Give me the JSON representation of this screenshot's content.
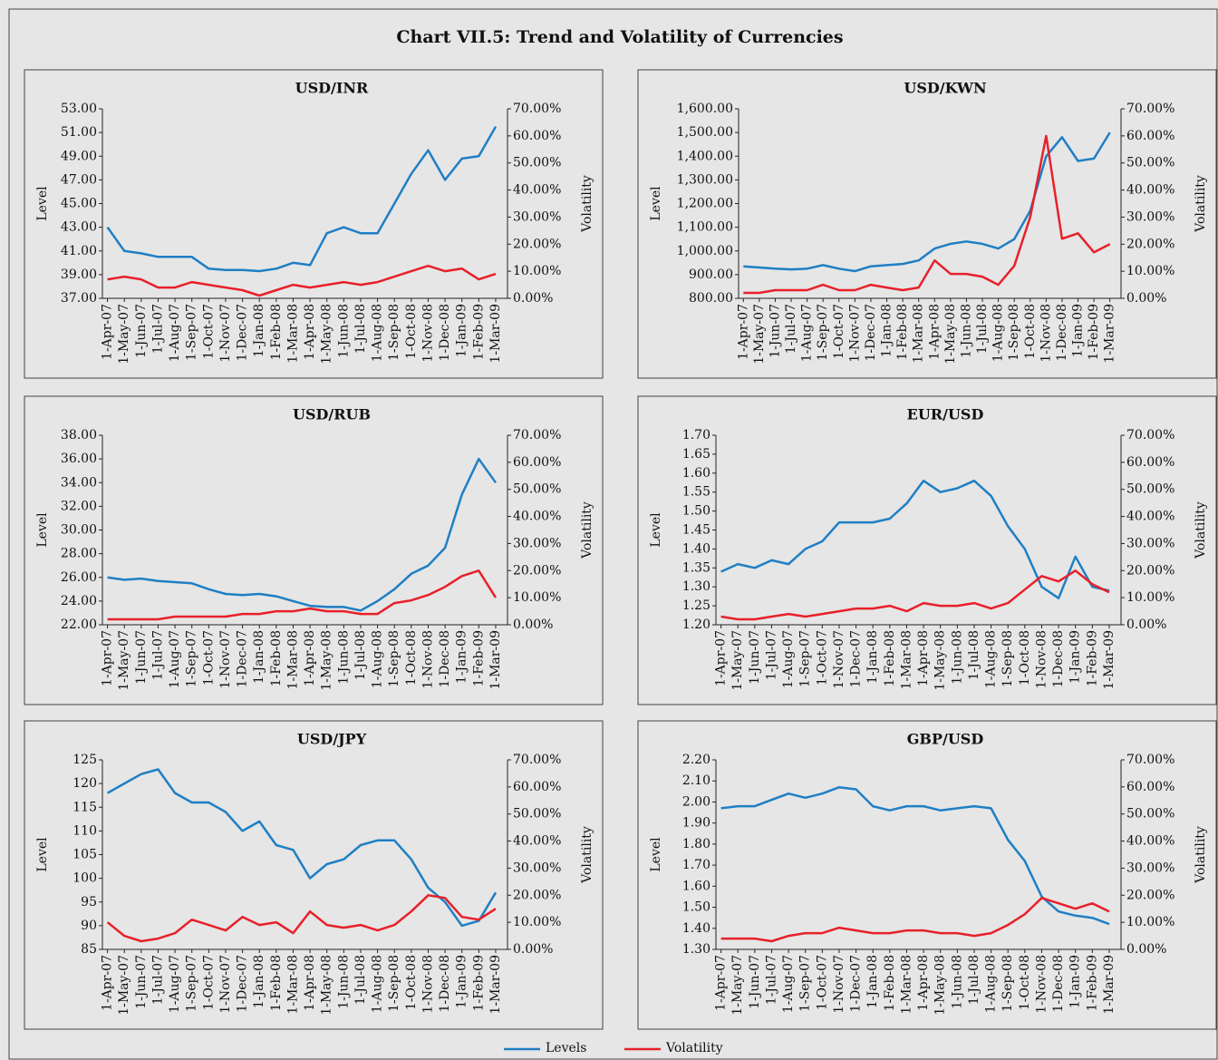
{
  "title": "Chart VII.5: Trend and Volatility of Currencies",
  "legend": [
    {
      "name": "Levels",
      "color": "#1f7fc4"
    },
    {
      "name": "Volatility",
      "color": "#e8202a"
    }
  ],
  "chart_data": [
    {
      "type": "line",
      "title": "USD/INR",
      "ylabel": "Level",
      "y2label": "Volatility",
      "categories": [
        "1-Apr-07",
        "1-May-07",
        "1-Jun-07",
        "1-Jul-07",
        "1-Aug-07",
        "1-Sep-07",
        "1-Oct-07",
        "1-Nov-07",
        "1-Dec-07",
        "1-Jan-08",
        "1-Feb-08",
        "1-Mar-08",
        "1-Apr-08",
        "1-May-08",
        "1-Jun-08",
        "1-Jul-08",
        "1-Aug-08",
        "1-Sep-08",
        "1-Oct-08",
        "1-Nov-08",
        "1-Dec-08",
        "1-Jan-09",
        "1-Feb-09",
        "1-Mar-09"
      ],
      "ylim": [
        37,
        53
      ],
      "yticks": [
        {
          "value": 37,
          "label": "37.00"
        },
        {
          "value": 39,
          "label": "39.00"
        },
        {
          "value": 41,
          "label": "41.00"
        },
        {
          "value": 43,
          "label": "43.00"
        },
        {
          "value": 45,
          "label": "45.00"
        },
        {
          "value": 47,
          "label": "47.00"
        },
        {
          "value": 49,
          "label": "49.00"
        },
        {
          "value": 51,
          "label": "51.00"
        },
        {
          "value": 53,
          "label": "53.00"
        }
      ],
      "y2lim": [
        0,
        70
      ],
      "y2ticks": [
        {
          "value": 0,
          "label": "0.00%"
        },
        {
          "value": 10,
          "label": "10.00%"
        },
        {
          "value": 20,
          "label": "20.00%"
        },
        {
          "value": 30,
          "label": "30.00%"
        },
        {
          "value": 40,
          "label": "40.00%"
        },
        {
          "value": 50,
          "label": "50.00%"
        },
        {
          "value": 60,
          "label": "60.00%"
        },
        {
          "value": 70,
          "label": "70.00%"
        }
      ],
      "series": [
        {
          "color": "#1f7fc4",
          "axis": "y",
          "values": [
            43.0,
            41.0,
            40.8,
            40.5,
            40.5,
            40.5,
            39.5,
            39.4,
            39.4,
            39.3,
            39.5,
            40.0,
            39.8,
            42.5,
            43.0,
            42.5,
            42.5,
            45.0,
            47.5,
            49.5,
            47.0,
            48.8,
            49.0,
            51.5
          ]
        },
        {
          "color": "#e8202a",
          "axis": "y2",
          "values": [
            7,
            8,
            7,
            4,
            4,
            6,
            5,
            4,
            3,
            1,
            3,
            5,
            4,
            5,
            6,
            5,
            6,
            8,
            10,
            12,
            10,
            11,
            7,
            9
          ]
        }
      ]
    },
    {
      "type": "line",
      "title": "USD/KWN",
      "ylabel": "Level",
      "y2label": "Volatility",
      "categories": [
        "1-Apr-07",
        "1-May-07",
        "1-Jun-07",
        "1-Jul-07",
        "1-Aug-07",
        "1-Sep-07",
        "1-Oct-07",
        "1-Nov-07",
        "1-Dec-07",
        "1-Jan-08",
        "1-Feb-08",
        "1-Mar-08",
        "1-Apr-08",
        "1-May-08",
        "1-Jun-08",
        "1-Jul-08",
        "1-Aug-08",
        "1-Sep-08",
        "1-Oct-08",
        "1-Nov-08",
        "1-Dec-08",
        "1-Jan-09",
        "1-Feb-09",
        "1-Mar-09"
      ],
      "ylim": [
        800,
        1600
      ],
      "yticks": [
        {
          "value": 800,
          "label": "800.00"
        },
        {
          "value": 900,
          "label": "900.00"
        },
        {
          "value": 1000,
          "label": "1,000.00"
        },
        {
          "value": 1100,
          "label": "1,100.00"
        },
        {
          "value": 1200,
          "label": "1,200.00"
        },
        {
          "value": 1300,
          "label": "1,300.00"
        },
        {
          "value": 1400,
          "label": "1,400.00"
        },
        {
          "value": 1500,
          "label": "1,500.00"
        },
        {
          "value": 1600,
          "label": "1,600.00"
        }
      ],
      "y2lim": [
        0,
        70
      ],
      "y2ticks": [
        {
          "value": 0,
          "label": "0.00%"
        },
        {
          "value": 10,
          "label": "10.00%"
        },
        {
          "value": 20,
          "label": "20.00%"
        },
        {
          "value": 30,
          "label": "30.00%"
        },
        {
          "value": 40,
          "label": "40.00%"
        },
        {
          "value": 50,
          "label": "50.00%"
        },
        {
          "value": 60,
          "label": "60.00%"
        },
        {
          "value": 70,
          "label": "70.00%"
        }
      ],
      "series": [
        {
          "color": "#1f7fc4",
          "axis": "y",
          "values": [
            935,
            930,
            925,
            922,
            925,
            940,
            925,
            915,
            935,
            940,
            945,
            960,
            1010,
            1030,
            1040,
            1030,
            1010,
            1050,
            1170,
            1400,
            1480,
            1380,
            1390,
            1500
          ]
        },
        {
          "color": "#e8202a",
          "axis": "y2",
          "values": [
            2,
            2,
            3,
            3,
            3,
            5,
            3,
            3,
            5,
            4,
            3,
            4,
            14,
            9,
            9,
            8,
            5,
            12,
            30,
            60,
            22,
            24,
            17,
            20
          ]
        }
      ]
    },
    {
      "type": "line",
      "title": "USD/RUB",
      "ylabel": "Level",
      "y2label": "Volatility",
      "categories": [
        "1-Apr-07",
        "1-May-07",
        "1-Jun-07",
        "1-Jul-07",
        "1-Aug-07",
        "1-Sep-07",
        "1-Oct-07",
        "1-Nov-07",
        "1-Dec-07",
        "1-Jan-08",
        "1-Feb-08",
        "1-Mar-08",
        "1-Apr-08",
        "1-May-08",
        "1-Jun-08",
        "1-Jul-08",
        "1-Aug-08",
        "1-Sep-08",
        "1-Oct-08",
        "1-Nov-08",
        "1-Dec-08",
        "1-Jan-09",
        "1-Feb-09",
        "1-Mar-09"
      ],
      "ylim": [
        22,
        38
      ],
      "yticks": [
        {
          "value": 22,
          "label": "22.00"
        },
        {
          "value": 24,
          "label": "24.00"
        },
        {
          "value": 26,
          "label": "26.00"
        },
        {
          "value": 28,
          "label": "28.00"
        },
        {
          "value": 30,
          "label": "30.00"
        },
        {
          "value": 32,
          "label": "32.00"
        },
        {
          "value": 34,
          "label": "34.00"
        },
        {
          "value": 36,
          "label": "36.00"
        },
        {
          "value": 38,
          "label": "38.00"
        }
      ],
      "y2lim": [
        0,
        70
      ],
      "y2ticks": [
        {
          "value": 0,
          "label": "0.00%"
        },
        {
          "value": 10,
          "label": "10.00%"
        },
        {
          "value": 20,
          "label": "20.00%"
        },
        {
          "value": 30,
          "label": "30.00%"
        },
        {
          "value": 40,
          "label": "40.00%"
        },
        {
          "value": 50,
          "label": "50.00%"
        },
        {
          "value": 60,
          "label": "60.00%"
        },
        {
          "value": 70,
          "label": "70.00%"
        }
      ],
      "series": [
        {
          "color": "#1f7fc4",
          "axis": "y",
          "values": [
            26.0,
            25.8,
            25.9,
            25.7,
            25.6,
            25.5,
            25.0,
            24.6,
            24.5,
            24.6,
            24.4,
            24.0,
            23.6,
            23.5,
            23.5,
            23.2,
            24.0,
            25.0,
            26.3,
            27.0,
            28.5,
            33.0,
            36.0,
            34.0
          ]
        },
        {
          "color": "#e8202a",
          "axis": "y2",
          "values": [
            2,
            2,
            2,
            2,
            3,
            3,
            3,
            3,
            4,
            4,
            5,
            5,
            6,
            5,
            5,
            4,
            4,
            8,
            9,
            11,
            14,
            18,
            20,
            10
          ]
        }
      ]
    },
    {
      "type": "line",
      "title": "EUR/USD",
      "ylabel": "Level",
      "y2label": "Volatility",
      "categories": [
        "1-Apr-07",
        "1-May-07",
        "1-Jun-07",
        "1-Jul-07",
        "1-Aug-07",
        "1-Sep-07",
        "1-Oct-07",
        "1-Nov-07",
        "1-Dec-07",
        "1-Jan-08",
        "1-Feb-08",
        "1-Mar-08",
        "1-Apr-08",
        "1-May-08",
        "1-Jun-08",
        "1-Jul-08",
        "1-Aug-08",
        "1-Sep-08",
        "1-Oct-08",
        "1-Nov-08",
        "1-Dec-08",
        "1-Jan-09",
        "1-Feb-09",
        "1-Mar-09"
      ],
      "ylim": [
        1.2,
        1.7
      ],
      "yticks": [
        {
          "value": 1.2,
          "label": "1.20"
        },
        1.25,
        {
          "value": 1.3,
          "label": "1.30"
        },
        1.35,
        {
          "value": 1.4,
          "label": "1.40"
        },
        1.45,
        {
          "value": 1.5,
          "label": "1.50"
        },
        1.55,
        {
          "value": 1.6,
          "label": "1.60"
        },
        1.65,
        {
          "value": 1.7,
          "label": "1.70"
        }
      ],
      "y2lim": [
        0,
        70
      ],
      "y2ticks": [
        {
          "value": 0,
          "label": "0.00%"
        },
        {
          "value": 10,
          "label": "10.00%"
        },
        {
          "value": 20,
          "label": "20.00%"
        },
        {
          "value": 30,
          "label": "30.00%"
        },
        {
          "value": 40,
          "label": "40.00%"
        },
        {
          "value": 50,
          "label": "50.00%"
        },
        {
          "value": 60,
          "label": "60.00%"
        },
        {
          "value": 70,
          "label": "70.00%"
        }
      ],
      "series": [
        {
          "color": "#1f7fc4",
          "axis": "y",
          "values": [
            1.34,
            1.36,
            1.35,
            1.37,
            1.36,
            1.4,
            1.42,
            1.47,
            1.47,
            1.47,
            1.48,
            1.52,
            1.58,
            1.55,
            1.56,
            1.58,
            1.54,
            1.46,
            1.4,
            1.3,
            1.27,
            1.38,
            1.3,
            1.29
          ]
        },
        {
          "color": "#e8202a",
          "axis": "y2",
          "values": [
            3,
            2,
            2,
            3,
            4,
            3,
            4,
            5,
            6,
            6,
            7,
            5,
            8,
            7,
            7,
            8,
            6,
            8,
            13,
            18,
            16,
            20,
            15,
            12
          ]
        }
      ]
    },
    {
      "type": "line",
      "title": "USD/JPY",
      "ylabel": "Level",
      "y2label": "Volatility",
      "categories": [
        "1-Apr-07",
        "1-May-07",
        "1-Jun-07",
        "1-Jul-07",
        "1-Aug-07",
        "1-Sep-07",
        "1-Oct-07",
        "1-Nov-07",
        "1-Dec-07",
        "1-Jan-08",
        "1-Feb-08",
        "1-Mar-08",
        "1-Apr-08",
        "1-May-08",
        "1-Jun-08",
        "1-Jul-08",
        "1-Aug-08",
        "1-Sep-08",
        "1-Oct-08",
        "1-Nov-08",
        "1-Dec-08",
        "1-Jan-09",
        "1-Feb-09",
        "1-Mar-09"
      ],
      "ylim": [
        85,
        125
      ],
      "yticks": [
        85,
        90,
        95,
        100,
        105,
        110,
        115,
        120,
        125
      ],
      "y2lim": [
        0,
        70
      ],
      "y2ticks": [
        {
          "value": 0,
          "label": "0.00%"
        },
        {
          "value": 10,
          "label": "10.00%"
        },
        {
          "value": 20,
          "label": "20.00%"
        },
        {
          "value": 30,
          "label": "30.00%"
        },
        {
          "value": 40,
          "label": "40.00%"
        },
        {
          "value": 50,
          "label": "50.00%"
        },
        {
          "value": 60,
          "label": "60.00%"
        },
        {
          "value": 70,
          "label": "70.00%"
        }
      ],
      "series": [
        {
          "color": "#1f7fc4",
          "axis": "y",
          "values": [
            118,
            120,
            122,
            123,
            118,
            116,
            116,
            114,
            110,
            112,
            107,
            106,
            100,
            103,
            104,
            107,
            108,
            108,
            104,
            98,
            95,
            90,
            91,
            97
          ]
        },
        {
          "color": "#e8202a",
          "axis": "y2",
          "values": [
            10,
            5,
            3,
            4,
            6,
            11,
            9,
            7,
            12,
            9,
            10,
            6,
            14,
            9,
            8,
            9,
            7,
            9,
            14,
            20,
            19,
            12,
            11,
            15
          ]
        }
      ]
    },
    {
      "type": "line",
      "title": "GBP/USD",
      "ylabel": "Level",
      "y2label": "Volatility",
      "categories": [
        "1-Apr-07",
        "1-May-07",
        "1-Jun-07",
        "1-Jul-07",
        "1-Aug-07",
        "1-Sep-07",
        "1-Oct-07",
        "1-Nov-07",
        "1-Dec-07",
        "1-Jan-08",
        "1-Feb-08",
        "1-Mar-08",
        "1-Apr-08",
        "1-May-08",
        "1-Jun-08",
        "1-Jul-08",
        "1-Aug-08",
        "1-Sep-08",
        "1-Oct-08",
        "1-Nov-08",
        "1-Dec-08",
        "1-Jan-09",
        "1-Feb-09",
        "1-Mar-09"
      ],
      "ylim": [
        1.3,
        2.2
      ],
      "yticks": [
        {
          "value": 1.3,
          "label": "1.30"
        },
        {
          "value": 1.4,
          "label": "1.40"
        },
        {
          "value": 1.5,
          "label": "1.50"
        },
        {
          "value": 1.6,
          "label": "1.60"
        },
        {
          "value": 1.7,
          "label": "1.70"
        },
        {
          "value": 1.8,
          "label": "1.80"
        },
        {
          "value": 1.9,
          "label": "1.90"
        },
        {
          "value": 2.0,
          "label": "2.00"
        },
        {
          "value": 2.1,
          "label": "2.10"
        },
        {
          "value": 2.2,
          "label": "2.20"
        }
      ],
      "y2lim": [
        0,
        70
      ],
      "y2ticks": [
        {
          "value": 0,
          "label": "0.00%"
        },
        {
          "value": 10,
          "label": "10.00%"
        },
        {
          "value": 20,
          "label": "20.00%"
        },
        {
          "value": 30,
          "label": "30.00%"
        },
        {
          "value": 40,
          "label": "40.00%"
        },
        {
          "value": 50,
          "label": "50.00%"
        },
        {
          "value": 60,
          "label": "60.00%"
        },
        {
          "value": 70,
          "label": "70.00%"
        }
      ],
      "series": [
        {
          "color": "#1f7fc4",
          "axis": "y",
          "values": [
            1.97,
            1.98,
            1.98,
            2.01,
            2.04,
            2.02,
            2.04,
            2.07,
            2.06,
            1.98,
            1.96,
            1.98,
            1.98,
            1.96,
            1.97,
            1.98,
            1.97,
            1.82,
            1.72,
            1.55,
            1.48,
            1.46,
            1.45,
            1.42
          ]
        },
        {
          "color": "#e8202a",
          "axis": "y2",
          "values": [
            4,
            4,
            4,
            3,
            5,
            6,
            6,
            8,
            7,
            6,
            6,
            7,
            7,
            6,
            6,
            5,
            6,
            9,
            13,
            19,
            17,
            15,
            17,
            14
          ]
        }
      ]
    }
  ]
}
